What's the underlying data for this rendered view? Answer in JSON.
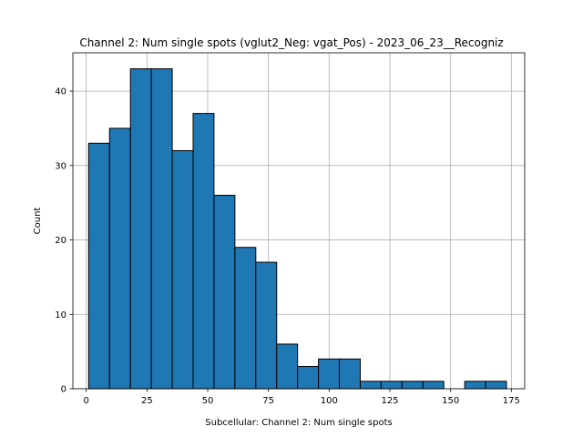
{
  "chart_data": {
    "type": "bar",
    "title": "Channel 2: Num single spots (vglut2_Neg: vgat_Pos) - 2023_06_23__Recogniz",
    "xlabel": "Subcellular: Channel 2: Num single spots",
    "ylabel": "Count",
    "xlim": [
      -5.5,
      180.5
    ],
    "ylim": [
      0,
      45.15
    ],
    "x_ticks": [
      0,
      25,
      50,
      75,
      100,
      125,
      150,
      175
    ],
    "y_ticks": [
      0,
      10,
      20,
      30,
      40
    ],
    "grid": true,
    "bins": [
      {
        "start": 1.0,
        "end": 9.6,
        "count": 33
      },
      {
        "start": 9.6,
        "end": 18.2,
        "count": 35
      },
      {
        "start": 18.2,
        "end": 26.8,
        "count": 43
      },
      {
        "start": 26.8,
        "end": 35.4,
        "count": 43
      },
      {
        "start": 35.4,
        "end": 44.0,
        "count": 32
      },
      {
        "start": 44.0,
        "end": 52.6,
        "count": 37
      },
      {
        "start": 52.6,
        "end": 61.2,
        "count": 26
      },
      {
        "start": 61.2,
        "end": 69.8,
        "count": 19
      },
      {
        "start": 69.8,
        "end": 78.4,
        "count": 17
      },
      {
        "start": 78.4,
        "end": 87.0,
        "count": 6
      },
      {
        "start": 87.0,
        "end": 95.6,
        "count": 3
      },
      {
        "start": 95.6,
        "end": 104.2,
        "count": 4
      },
      {
        "start": 104.2,
        "end": 112.8,
        "count": 4
      },
      {
        "start": 112.8,
        "end": 121.4,
        "count": 1
      },
      {
        "start": 121.4,
        "end": 130.0,
        "count": 1
      },
      {
        "start": 130.0,
        "end": 138.6,
        "count": 1
      },
      {
        "start": 138.6,
        "end": 147.2,
        "count": 1
      },
      {
        "start": 147.2,
        "end": 155.8,
        "count": 0
      },
      {
        "start": 155.8,
        "end": 164.4,
        "count": 1
      },
      {
        "start": 164.4,
        "end": 173.0,
        "count": 1
      }
    ],
    "bar_color": "#1f77b4",
    "edge_color": "#000000",
    "grid_color": "#b0b0b0"
  }
}
